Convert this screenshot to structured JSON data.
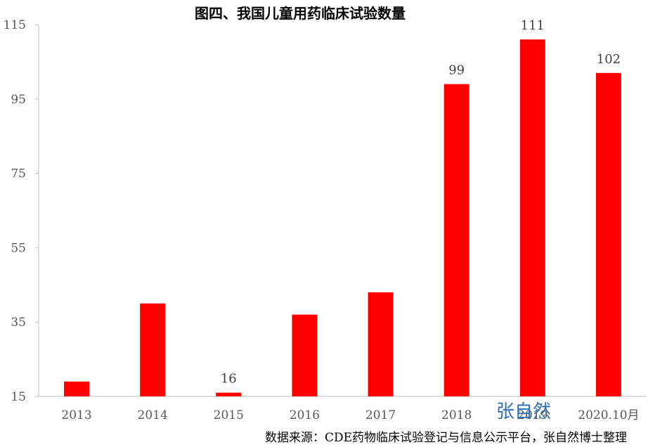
{
  "chart_data": {
    "type": "bar",
    "title": "图四、我国儿童用药临床试验数量",
    "categories": [
      "2013",
      "2014",
      "2015",
      "2016",
      "2017",
      "2018",
      "2019",
      "2020.10月"
    ],
    "values": [
      19,
      40,
      16,
      37,
      43,
      99,
      111,
      102
    ],
    "data_labels": [
      "",
      "",
      "16",
      "",
      "",
      "99",
      "111",
      "102"
    ],
    "ylim": [
      15,
      115
    ],
    "yticks": [
      "15",
      "35",
      "55",
      "75",
      "95",
      "115"
    ],
    "bar_color": "#ff0000",
    "grid": false,
    "legend": "none"
  },
  "source_note": "数据来源：CDE药物临床试验登记与信息公示平台，张自然博士整理",
  "watermark": "张自然"
}
